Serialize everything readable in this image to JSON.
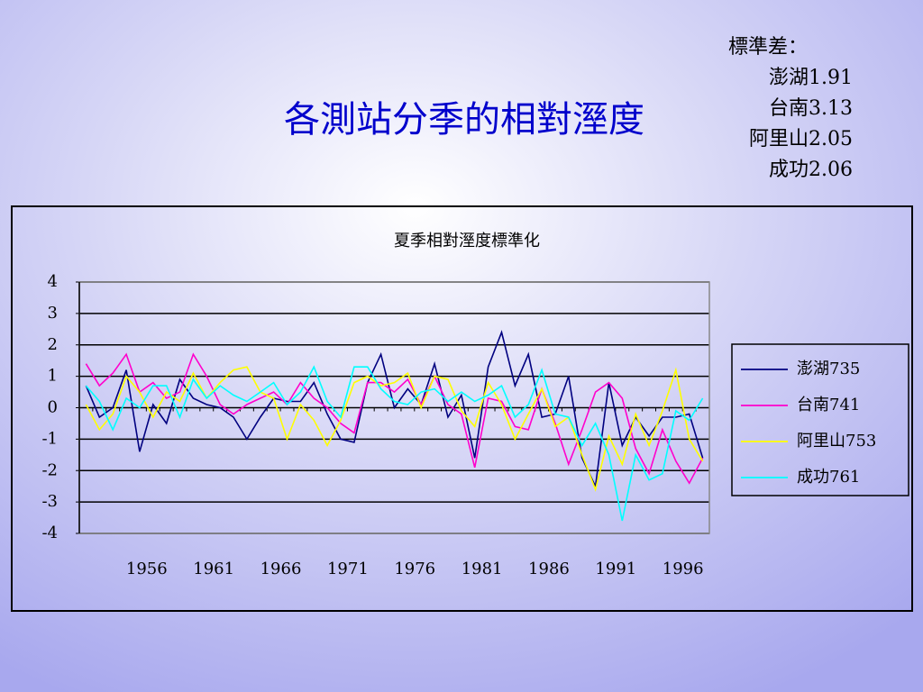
{
  "title": "各測站分季的相對溼度",
  "notes": {
    "heading": "標準差：",
    "lines": [
      "澎湖1.91",
      "台南3.13",
      "阿里山2.05",
      "成功2.06"
    ]
  },
  "chart_data": {
    "type": "line",
    "title": "夏季相對溼度標準化",
    "categories": [
      null,
      null,
      null,
      null,
      null,
      "1956",
      null,
      null,
      null,
      null,
      "1961",
      null,
      null,
      null,
      null,
      "1966",
      null,
      null,
      null,
      null,
      "1971",
      null,
      null,
      null,
      null,
      "1976",
      null,
      null,
      null,
      null,
      "1981",
      null,
      null,
      null,
      null,
      "1986",
      null,
      null,
      null,
      null,
      "1991",
      null,
      null,
      null,
      null,
      "1996",
      null
    ],
    "ylim": [
      -4,
      4
    ],
    "yticks": [
      -4,
      -3,
      -2,
      -1,
      0,
      1,
      2,
      3,
      4
    ],
    "grid": true,
    "legend": "right",
    "series": [
      {
        "name": "澎湖735",
        "color": "#000080",
        "values": [
          0.7,
          -0.3,
          0,
          1.2,
          -1.4,
          0.1,
          -0.5,
          0.9,
          0.3,
          0.1,
          0,
          -0.3,
          -1.0,
          -0.3,
          0.3,
          0.2,
          0.2,
          0.8,
          -0.2,
          -1.0,
          -1.1,
          0.8,
          1.7,
          0,
          0.6,
          0.1,
          1.4,
          -0.3,
          0.4,
          -1.6,
          1.3,
          2.4,
          0.7,
          1.7,
          -0.3,
          -0.2,
          1.0,
          -1.6,
          -2.5,
          0.8,
          -1.2,
          -0.3,
          -0.9,
          -0.3,
          -0.3,
          -0.2,
          -1.6
        ]
      },
      {
        "name": "台南741",
        "color": "#ff00cc",
        "values": [
          1.4,
          0.7,
          1.1,
          1.7,
          0.5,
          0.8,
          0.3,
          0.5,
          1.7,
          1.0,
          0.1,
          -0.2,
          0.1,
          0.3,
          0.5,
          0.1,
          0.8,
          0.3,
          0,
          -0.5,
          -0.8,
          0.8,
          0.8,
          0.5,
          0.9,
          0.1,
          1.0,
          0.1,
          -0.2,
          -1.9,
          0.3,
          0.2,
          -0.6,
          -0.7,
          0.6,
          -0.5,
          -1.8,
          -0.7,
          0.5,
          0.8,
          0.3,
          -1.3,
          -2.1,
          -0.7,
          -1.7,
          -2.4,
          -1.6
        ]
      },
      {
        "name": "阿里山753",
        "color": "#ffff00",
        "values": [
          0.1,
          -0.7,
          -0.2,
          1.0,
          0.5,
          -0.3,
          0.5,
          0.2,
          1.1,
          0.3,
          0.8,
          1.2,
          1.3,
          0.5,
          0.3,
          -1.0,
          0.1,
          -0.4,
          -1.2,
          -0.4,
          0.8,
          1.0,
          0.7,
          0.8,
          1.1,
          0,
          1.0,
          0.9,
          -0.1,
          -0.6,
          0.8,
          0.1,
          -1.0,
          -0.2,
          0.6,
          -0.6,
          -0.3,
          -1.5,
          -2.6,
          -0.9,
          -1.8,
          -0.2,
          -1.2,
          -0.1,
          1.2,
          -1.0,
          -1.7
        ]
      },
      {
        "name": "成功761",
        "color": "#00ffff",
        "values": [
          0.7,
          0.2,
          -0.7,
          0.3,
          0,
          0.7,
          0.7,
          -0.3,
          0.9,
          0.3,
          0.7,
          0.4,
          0.2,
          0.5,
          0.8,
          0.1,
          0.5,
          1.3,
          0.2,
          -0.3,
          1.3,
          1.3,
          0.6,
          0.2,
          0.1,
          0.5,
          0.6,
          0.2,
          0.5,
          0.2,
          0.4,
          0.7,
          -0.3,
          0.1,
          1.2,
          -0.2,
          -0.3,
          -1.2,
          -0.5,
          -1.5,
          -3.6,
          -1.5,
          -2.3,
          -2.1,
          -0.1,
          -0.4,
          0.3
        ]
      }
    ]
  }
}
